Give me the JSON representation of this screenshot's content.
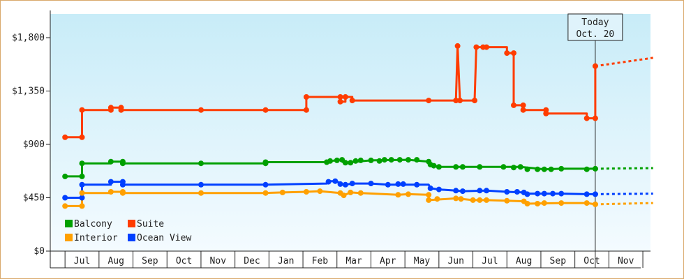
{
  "chart_data": {
    "type": "line",
    "ylim": [
      0,
      2000
    ],
    "yticks": [
      0,
      450,
      900,
      1350,
      1800
    ],
    "ytick_labels": [
      "$0",
      "$450",
      "$900",
      "$1,350",
      "$1,800"
    ],
    "months": [
      "Jul",
      "Aug",
      "Sep",
      "Oct",
      "Nov",
      "Dec",
      "Jan",
      "Feb",
      "Mar",
      "Apr",
      "May",
      "Jun",
      "Jul",
      "Aug",
      "Sep",
      "Oct",
      "Nov"
    ],
    "today_month_index": 15.1,
    "callout": {
      "line1": "Today",
      "line2": "Oct. 20"
    },
    "grid": false,
    "legend_position": "bottom-left",
    "series": [
      {
        "name": "Suite",
        "color": "#ff3c00",
        "points": [
          [
            -0.5,
            960
          ],
          [
            0,
            960
          ],
          [
            0,
            1190
          ],
          [
            0.85,
            1190
          ],
          [
            0.85,
            1210
          ],
          [
            1.15,
            1210
          ],
          [
            1.15,
            1190
          ],
          [
            3.5,
            1190
          ],
          [
            5.4,
            1190
          ],
          [
            6.6,
            1190
          ],
          [
            6.6,
            1300
          ],
          [
            7.6,
            1300
          ],
          [
            7.6,
            1260
          ],
          [
            7.75,
            1260
          ],
          [
            7.75,
            1300
          ],
          [
            7.95,
            1300
          ],
          [
            7.95,
            1270
          ],
          [
            10.2,
            1270
          ],
          [
            11.0,
            1270
          ],
          [
            11.05,
            1730
          ],
          [
            11.12,
            1270
          ],
          [
            11.55,
            1270
          ],
          [
            11.6,
            1720
          ],
          [
            12.5,
            1720
          ],
          [
            12.5,
            1670
          ],
          [
            12.7,
            1670
          ],
          [
            12.7,
            1230
          ],
          [
            12.98,
            1230
          ],
          [
            12.98,
            1190
          ],
          [
            13.65,
            1190
          ],
          [
            13.65,
            1160
          ],
          [
            14.85,
            1160
          ],
          [
            14.85,
            1120
          ],
          [
            15.1,
            1120
          ],
          [
            15.1,
            1560
          ]
        ],
        "markers": [
          [
            -0.5,
            960
          ],
          [
            0,
            960
          ],
          [
            0,
            1190
          ],
          [
            0.85,
            1190
          ],
          [
            0.85,
            1210
          ],
          [
            1.15,
            1210
          ],
          [
            1.15,
            1190
          ],
          [
            3.5,
            1190
          ],
          [
            5.4,
            1190
          ],
          [
            6.6,
            1190
          ],
          [
            6.6,
            1300
          ],
          [
            7.6,
            1300
          ],
          [
            7.6,
            1260
          ],
          [
            7.75,
            1300
          ],
          [
            7.95,
            1270
          ],
          [
            10.2,
            1270
          ],
          [
            11.0,
            1270
          ],
          [
            11.05,
            1730
          ],
          [
            11.12,
            1270
          ],
          [
            11.55,
            1270
          ],
          [
            11.6,
            1720
          ],
          [
            11.8,
            1720
          ],
          [
            11.9,
            1720
          ],
          [
            12.5,
            1670
          ],
          [
            12.7,
            1670
          ],
          [
            12.7,
            1230
          ],
          [
            12.98,
            1230
          ],
          [
            12.98,
            1190
          ],
          [
            13.65,
            1190
          ],
          [
            13.65,
            1160
          ],
          [
            14.85,
            1120
          ],
          [
            15.1,
            1120
          ],
          [
            15.1,
            1560
          ]
        ],
        "projection": [
          [
            15.1,
            1560
          ],
          [
            16.8,
            1630
          ]
        ]
      },
      {
        "name": "Balcony",
        "color": "#00a000",
        "points": [
          [
            -0.5,
            630
          ],
          [
            0,
            630
          ],
          [
            0,
            740
          ],
          [
            0.85,
            740
          ],
          [
            0.85,
            755
          ],
          [
            1.2,
            755
          ],
          [
            1.2,
            740
          ],
          [
            3.5,
            740
          ],
          [
            5.4,
            740
          ],
          [
            5.4,
            750
          ],
          [
            7.2,
            750
          ],
          [
            7.3,
            760
          ],
          [
            7.5,
            765
          ],
          [
            7.6,
            770
          ],
          [
            7.7,
            745
          ],
          [
            8.5,
            765
          ],
          [
            9.6,
            770
          ],
          [
            10.2,
            755
          ],
          [
            10.25,
            730
          ],
          [
            10.5,
            710
          ],
          [
            12.9,
            710
          ],
          [
            13.6,
            690
          ],
          [
            14.1,
            695
          ],
          [
            15.1,
            695
          ]
        ],
        "markers": [
          [
            -0.5,
            630
          ],
          [
            0,
            630
          ],
          [
            0,
            740
          ],
          [
            0.85,
            755
          ],
          [
            1.2,
            755
          ],
          [
            1.2,
            740
          ],
          [
            3.5,
            740
          ],
          [
            5.4,
            740
          ],
          [
            5.4,
            750
          ],
          [
            7.2,
            750
          ],
          [
            7.3,
            760
          ],
          [
            7.5,
            765
          ],
          [
            7.65,
            770
          ],
          [
            7.75,
            745
          ],
          [
            7.9,
            745
          ],
          [
            8.05,
            760
          ],
          [
            8.2,
            765
          ],
          [
            8.5,
            765
          ],
          [
            8.75,
            760
          ],
          [
            8.9,
            770
          ],
          [
            9.1,
            770
          ],
          [
            9.35,
            770
          ],
          [
            9.6,
            770
          ],
          [
            9.85,
            770
          ],
          [
            10.2,
            755
          ],
          [
            10.25,
            730
          ],
          [
            10.35,
            720
          ],
          [
            10.5,
            710
          ],
          [
            11.0,
            710
          ],
          [
            11.2,
            710
          ],
          [
            11.7,
            710
          ],
          [
            12.4,
            710
          ],
          [
            12.7,
            705
          ],
          [
            12.9,
            710
          ],
          [
            13.1,
            690
          ],
          [
            13.4,
            690
          ],
          [
            13.6,
            690
          ],
          [
            13.8,
            690
          ],
          [
            14.1,
            695
          ],
          [
            14.85,
            690
          ],
          [
            15.1,
            695
          ]
        ],
        "projection": [
          [
            15.1,
            695
          ],
          [
            16.8,
            700
          ]
        ]
      },
      {
        "name": "Ocean View",
        "color": "#0040ff",
        "points": [
          [
            -0.5,
            450
          ],
          [
            0,
            450
          ],
          [
            0,
            560
          ],
          [
            0.85,
            560
          ],
          [
            0.85,
            585
          ],
          [
            1.2,
            585
          ],
          [
            1.2,
            560
          ],
          [
            3.5,
            560
          ],
          [
            5.4,
            560
          ],
          [
            7.2,
            570
          ],
          [
            7.3,
            590
          ],
          [
            7.5,
            590
          ],
          [
            7.6,
            565
          ],
          [
            7.75,
            560
          ],
          [
            7.95,
            570
          ],
          [
            8.5,
            570
          ],
          [
            9.0,
            560
          ],
          [
            10.2,
            560
          ],
          [
            10.25,
            530
          ],
          [
            10.5,
            520
          ],
          [
            11.0,
            510
          ],
          [
            11.2,
            505
          ],
          [
            11.9,
            510
          ],
          [
            12.5,
            500
          ],
          [
            13.0,
            495
          ],
          [
            13.1,
            485
          ],
          [
            14.1,
            485
          ],
          [
            14.85,
            480
          ],
          [
            15.1,
            480
          ]
        ],
        "markers": [
          [
            -0.5,
            450
          ],
          [
            0,
            450
          ],
          [
            0,
            560
          ],
          [
            0.85,
            585
          ],
          [
            1.2,
            585
          ],
          [
            1.2,
            560
          ],
          [
            3.5,
            560
          ],
          [
            5.4,
            560
          ],
          [
            7.25,
            585
          ],
          [
            7.45,
            590
          ],
          [
            7.6,
            565
          ],
          [
            7.75,
            560
          ],
          [
            7.95,
            570
          ],
          [
            8.5,
            570
          ],
          [
            9.0,
            560
          ],
          [
            9.3,
            565
          ],
          [
            9.45,
            565
          ],
          [
            9.85,
            560
          ],
          [
            10.25,
            530
          ],
          [
            10.5,
            520
          ],
          [
            11.0,
            510
          ],
          [
            11.2,
            505
          ],
          [
            11.7,
            510
          ],
          [
            11.9,
            510
          ],
          [
            12.5,
            500
          ],
          [
            12.8,
            500
          ],
          [
            13.0,
            495
          ],
          [
            13.1,
            480
          ],
          [
            13.4,
            485
          ],
          [
            13.6,
            485
          ],
          [
            13.85,
            485
          ],
          [
            14.1,
            485
          ],
          [
            14.85,
            480
          ],
          [
            15.1,
            480
          ]
        ],
        "projection": [
          [
            15.1,
            480
          ],
          [
            16.8,
            485
          ]
        ]
      },
      {
        "name": "Interior",
        "color": "#ffa000",
        "points": [
          [
            -0.5,
            380
          ],
          [
            0,
            380
          ],
          [
            0,
            490
          ],
          [
            0.85,
            490
          ],
          [
            0.85,
            500
          ],
          [
            1.2,
            500
          ],
          [
            1.2,
            490
          ],
          [
            3.5,
            490
          ],
          [
            5.4,
            490
          ],
          [
            5.9,
            495
          ],
          [
            6.6,
            500
          ],
          [
            7.0,
            505
          ],
          [
            7.6,
            490
          ],
          [
            7.7,
            470
          ],
          [
            7.9,
            495
          ],
          [
            8.2,
            490
          ],
          [
            9.3,
            475
          ],
          [
            9.6,
            480
          ],
          [
            10.2,
            475
          ],
          [
            10.2,
            430
          ],
          [
            11.0,
            445
          ],
          [
            11.5,
            430
          ],
          [
            11.9,
            430
          ],
          [
            12.5,
            425
          ],
          [
            13.0,
            420
          ],
          [
            13.1,
            400
          ],
          [
            14.1,
            405
          ],
          [
            14.85,
            405
          ],
          [
            15.1,
            395
          ]
        ],
        "markers": [
          [
            -0.5,
            380
          ],
          [
            0,
            380
          ],
          [
            0,
            490
          ],
          [
            0.85,
            500
          ],
          [
            1.2,
            500
          ],
          [
            1.2,
            490
          ],
          [
            3.5,
            490
          ],
          [
            5.4,
            490
          ],
          [
            5.9,
            495
          ],
          [
            6.6,
            500
          ],
          [
            7.0,
            505
          ],
          [
            7.6,
            490
          ],
          [
            7.7,
            470
          ],
          [
            7.9,
            495
          ],
          [
            8.2,
            490
          ],
          [
            9.3,
            475
          ],
          [
            9.6,
            480
          ],
          [
            10.2,
            475
          ],
          [
            10.2,
            430
          ],
          [
            10.45,
            440
          ],
          [
            11.0,
            445
          ],
          [
            11.15,
            440
          ],
          [
            11.5,
            430
          ],
          [
            11.7,
            430
          ],
          [
            11.9,
            430
          ],
          [
            12.5,
            425
          ],
          [
            13.0,
            420
          ],
          [
            13.1,
            400
          ],
          [
            13.4,
            400
          ],
          [
            13.6,
            405
          ],
          [
            14.1,
            405
          ],
          [
            14.85,
            405
          ],
          [
            15.1,
            395
          ]
        ],
        "projection": [
          [
            15.1,
            395
          ],
          [
            16.8,
            405
          ]
        ]
      }
    ],
    "legend": [
      {
        "label": "Balcony",
        "color": "#00a000"
      },
      {
        "label": "Suite",
        "color": "#ff3c00"
      },
      {
        "label": "Interior",
        "color": "#ffa000"
      },
      {
        "label": "Ocean View",
        "color": "#0040ff"
      }
    ]
  }
}
